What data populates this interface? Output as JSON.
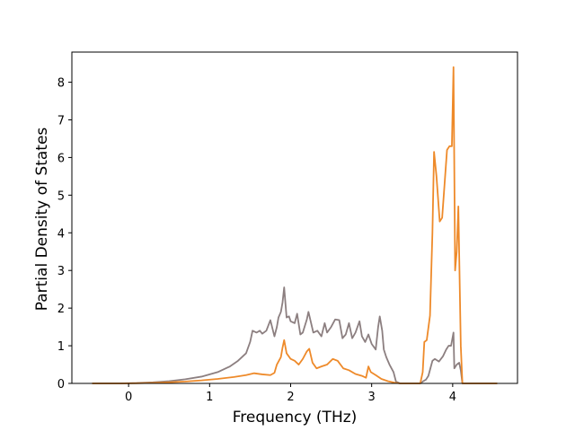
{
  "chart_data": {
    "type": "line",
    "title": "",
    "xlabel": "Frequency (THz)",
    "ylabel": "Partial Density of States",
    "xlim": [
      -0.7,
      4.8
    ],
    "ylim": [
      0,
      8.8
    ],
    "xticks": [
      0,
      1,
      2,
      3,
      4
    ],
    "yticks": [
      0,
      1,
      2,
      3,
      4,
      5,
      6,
      7,
      8
    ],
    "grid": false,
    "legend": "none",
    "series": [
      {
        "color": "#8c7f80",
        "points": [
          [
            -0.45,
            0
          ],
          [
            -0.1,
            0
          ],
          [
            0.1,
            0.01
          ],
          [
            0.3,
            0.03
          ],
          [
            0.5,
            0.06
          ],
          [
            0.7,
            0.11
          ],
          [
            0.9,
            0.18
          ],
          [
            1.1,
            0.3
          ],
          [
            1.25,
            0.45
          ],
          [
            1.35,
            0.6
          ],
          [
            1.45,
            0.8
          ],
          [
            1.5,
            1.1
          ],
          [
            1.53,
            1.4
          ],
          [
            1.58,
            1.35
          ],
          [
            1.62,
            1.4
          ],
          [
            1.65,
            1.32
          ],
          [
            1.7,
            1.4
          ],
          [
            1.75,
            1.68
          ],
          [
            1.8,
            1.25
          ],
          [
            1.83,
            1.5
          ],
          [
            1.85,
            1.75
          ],
          [
            1.88,
            1.9
          ],
          [
            1.9,
            2.15
          ],
          [
            1.92,
            2.55
          ],
          [
            1.95,
            1.75
          ],
          [
            1.98,
            1.78
          ],
          [
            2.0,
            1.65
          ],
          [
            2.05,
            1.6
          ],
          [
            2.08,
            1.85
          ],
          [
            2.12,
            1.3
          ],
          [
            2.15,
            1.35
          ],
          [
            2.2,
            1.7
          ],
          [
            2.22,
            1.9
          ],
          [
            2.28,
            1.35
          ],
          [
            2.33,
            1.4
          ],
          [
            2.38,
            1.25
          ],
          [
            2.42,
            1.6
          ],
          [
            2.45,
            1.35
          ],
          [
            2.5,
            1.5
          ],
          [
            2.55,
            1.7
          ],
          [
            2.6,
            1.68
          ],
          [
            2.64,
            1.2
          ],
          [
            2.68,
            1.3
          ],
          [
            2.72,
            1.6
          ],
          [
            2.76,
            1.2
          ],
          [
            2.8,
            1.35
          ],
          [
            2.85,
            1.65
          ],
          [
            2.88,
            1.25
          ],
          [
            2.92,
            1.1
          ],
          [
            2.96,
            1.3
          ],
          [
            3.0,
            1.05
          ],
          [
            3.05,
            0.9
          ],
          [
            3.08,
            1.5
          ],
          [
            3.1,
            1.78
          ],
          [
            3.13,
            1.4
          ],
          [
            3.15,
            0.9
          ],
          [
            3.18,
            0.7
          ],
          [
            3.22,
            0.5
          ],
          [
            3.27,
            0.3
          ],
          [
            3.3,
            0.05
          ],
          [
            3.35,
            0
          ],
          [
            3.6,
            0
          ],
          [
            3.63,
            0.05
          ],
          [
            3.67,
            0.1
          ],
          [
            3.7,
            0.2
          ],
          [
            3.75,
            0.6
          ],
          [
            3.78,
            0.65
          ],
          [
            3.83,
            0.58
          ],
          [
            3.88,
            0.72
          ],
          [
            3.92,
            0.9
          ],
          [
            3.95,
            1.0
          ],
          [
            3.98,
            1.0
          ],
          [
            4.01,
            1.35
          ],
          [
            4.02,
            0.4
          ],
          [
            4.05,
            0.5
          ],
          [
            4.08,
            0.55
          ],
          [
            4.1,
            0.35
          ],
          [
            4.12,
            0
          ],
          [
            4.55,
            0
          ]
        ]
      },
      {
        "color": "#ee8a2a",
        "points": [
          [
            -0.45,
            0
          ],
          [
            -0.1,
            0
          ],
          [
            0.1,
            0.005
          ],
          [
            0.3,
            0.015
          ],
          [
            0.5,
            0.03
          ],
          [
            0.7,
            0.05
          ],
          [
            0.9,
            0.08
          ],
          [
            1.1,
            0.12
          ],
          [
            1.3,
            0.17
          ],
          [
            1.45,
            0.22
          ],
          [
            1.55,
            0.27
          ],
          [
            1.65,
            0.24
          ],
          [
            1.75,
            0.22
          ],
          [
            1.8,
            0.28
          ],
          [
            1.83,
            0.5
          ],
          [
            1.88,
            0.7
          ],
          [
            1.9,
            0.95
          ],
          [
            1.92,
            1.15
          ],
          [
            1.95,
            0.8
          ],
          [
            2.0,
            0.65
          ],
          [
            2.05,
            0.6
          ],
          [
            2.1,
            0.5
          ],
          [
            2.15,
            0.65
          ],
          [
            2.2,
            0.85
          ],
          [
            2.23,
            0.92
          ],
          [
            2.27,
            0.55
          ],
          [
            2.32,
            0.4
          ],
          [
            2.38,
            0.45
          ],
          [
            2.45,
            0.5
          ],
          [
            2.52,
            0.65
          ],
          [
            2.58,
            0.6
          ],
          [
            2.65,
            0.4
          ],
          [
            2.72,
            0.35
          ],
          [
            2.8,
            0.25
          ],
          [
            2.88,
            0.2
          ],
          [
            2.93,
            0.15
          ],
          [
            2.96,
            0.45
          ],
          [
            2.99,
            0.3
          ],
          [
            3.05,
            0.22
          ],
          [
            3.12,
            0.12
          ],
          [
            3.2,
            0.06
          ],
          [
            3.28,
            0.02
          ],
          [
            3.35,
            0
          ],
          [
            3.6,
            0
          ],
          [
            3.63,
            0.3
          ],
          [
            3.65,
            1.1
          ],
          [
            3.68,
            1.15
          ],
          [
            3.72,
            1.8
          ],
          [
            3.75,
            4.0
          ],
          [
            3.77,
            6.15
          ],
          [
            3.8,
            5.5
          ],
          [
            3.84,
            4.3
          ],
          [
            3.87,
            4.4
          ],
          [
            3.9,
            5.3
          ],
          [
            3.93,
            6.2
          ],
          [
            3.96,
            6.3
          ],
          [
            3.99,
            6.3
          ],
          [
            4.01,
            8.4
          ],
          [
            4.03,
            3.0
          ],
          [
            4.05,
            3.5
          ],
          [
            4.07,
            4.7
          ],
          [
            4.1,
            1.0
          ],
          [
            4.12,
            0
          ],
          [
            4.55,
            0
          ]
        ]
      }
    ]
  }
}
